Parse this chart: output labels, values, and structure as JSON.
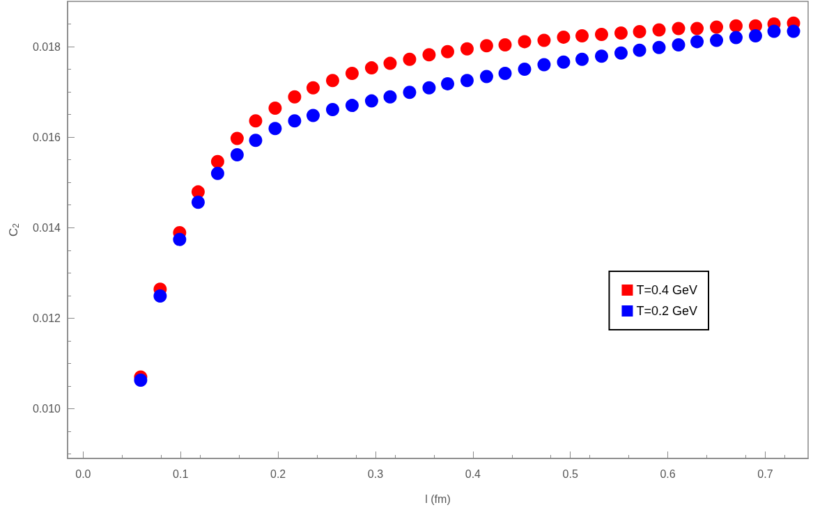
{
  "chart_data": {
    "type": "scatter",
    "xlabel": "l (fm)",
    "ylabel": "C$_{2}$",
    "x": [
      0.059,
      0.079,
      0.099,
      0.118,
      0.138,
      0.158,
      0.177,
      0.197,
      0.217,
      0.236,
      0.256,
      0.276,
      0.296,
      0.315,
      0.335,
      0.355,
      0.374,
      0.394,
      0.414,
      0.433,
      0.453,
      0.473,
      0.493,
      0.512,
      0.532,
      0.552,
      0.571,
      0.591,
      0.611,
      0.63,
      0.65,
      0.67,
      0.69,
      0.709,
      0.729
    ],
    "series": [
      {
        "name": "T=0.4 GeV",
        "color": "#ff0000",
        "values": [
          0.0107,
          0.01264,
          0.01389,
          0.01479,
          0.01546,
          0.01597,
          0.01636,
          0.01664,
          0.01689,
          0.01709,
          0.01725,
          0.01741,
          0.01753,
          0.01763,
          0.01772,
          0.01782,
          0.01789,
          0.01795,
          0.01802,
          0.01804,
          0.01811,
          0.01814,
          0.01821,
          0.01824,
          0.01827,
          0.0183,
          0.01833,
          0.01837,
          0.0184,
          0.0184,
          0.01843,
          0.01846,
          0.01846,
          0.0185,
          0.01852
        ]
      },
      {
        "name": "T=0.2 GeV",
        "color": "#0000ff",
        "values": [
          0.01063,
          0.01249,
          0.01374,
          0.01456,
          0.0152,
          0.01561,
          0.01593,
          0.01619,
          0.01636,
          0.01648,
          0.01661,
          0.0167,
          0.0168,
          0.01689,
          0.01699,
          0.01709,
          0.01718,
          0.01725,
          0.01734,
          0.01741,
          0.0175,
          0.0176,
          0.01766,
          0.01772,
          0.01779,
          0.01786,
          0.01792,
          0.01798,
          0.01804,
          0.01811,
          0.01814,
          0.0182,
          0.01824,
          0.01834,
          0.01834
        ]
      }
    ],
    "xlim": [
      -0.016,
      0.744
    ],
    "xticks": [
      {
        "value": 0,
        "label": "0.0"
      },
      0.1,
      0.2,
      0.3,
      0.4,
      0.5,
      0.6,
      0.7
    ],
    "ylim": [
      0.0089,
      0.019
    ],
    "yticks": [
      {
        "value": 0.01,
        "label": "0.010"
      },
      {
        "value": 0.012,
        "label": "0.012"
      },
      {
        "value": 0.014,
        "label": "0.014"
      },
      {
        "value": 0.016,
        "label": "0.016"
      },
      {
        "value": 0.018,
        "label": "0.018"
      }
    ],
    "grid": false,
    "legend": "right",
    "marker": "circle"
  }
}
